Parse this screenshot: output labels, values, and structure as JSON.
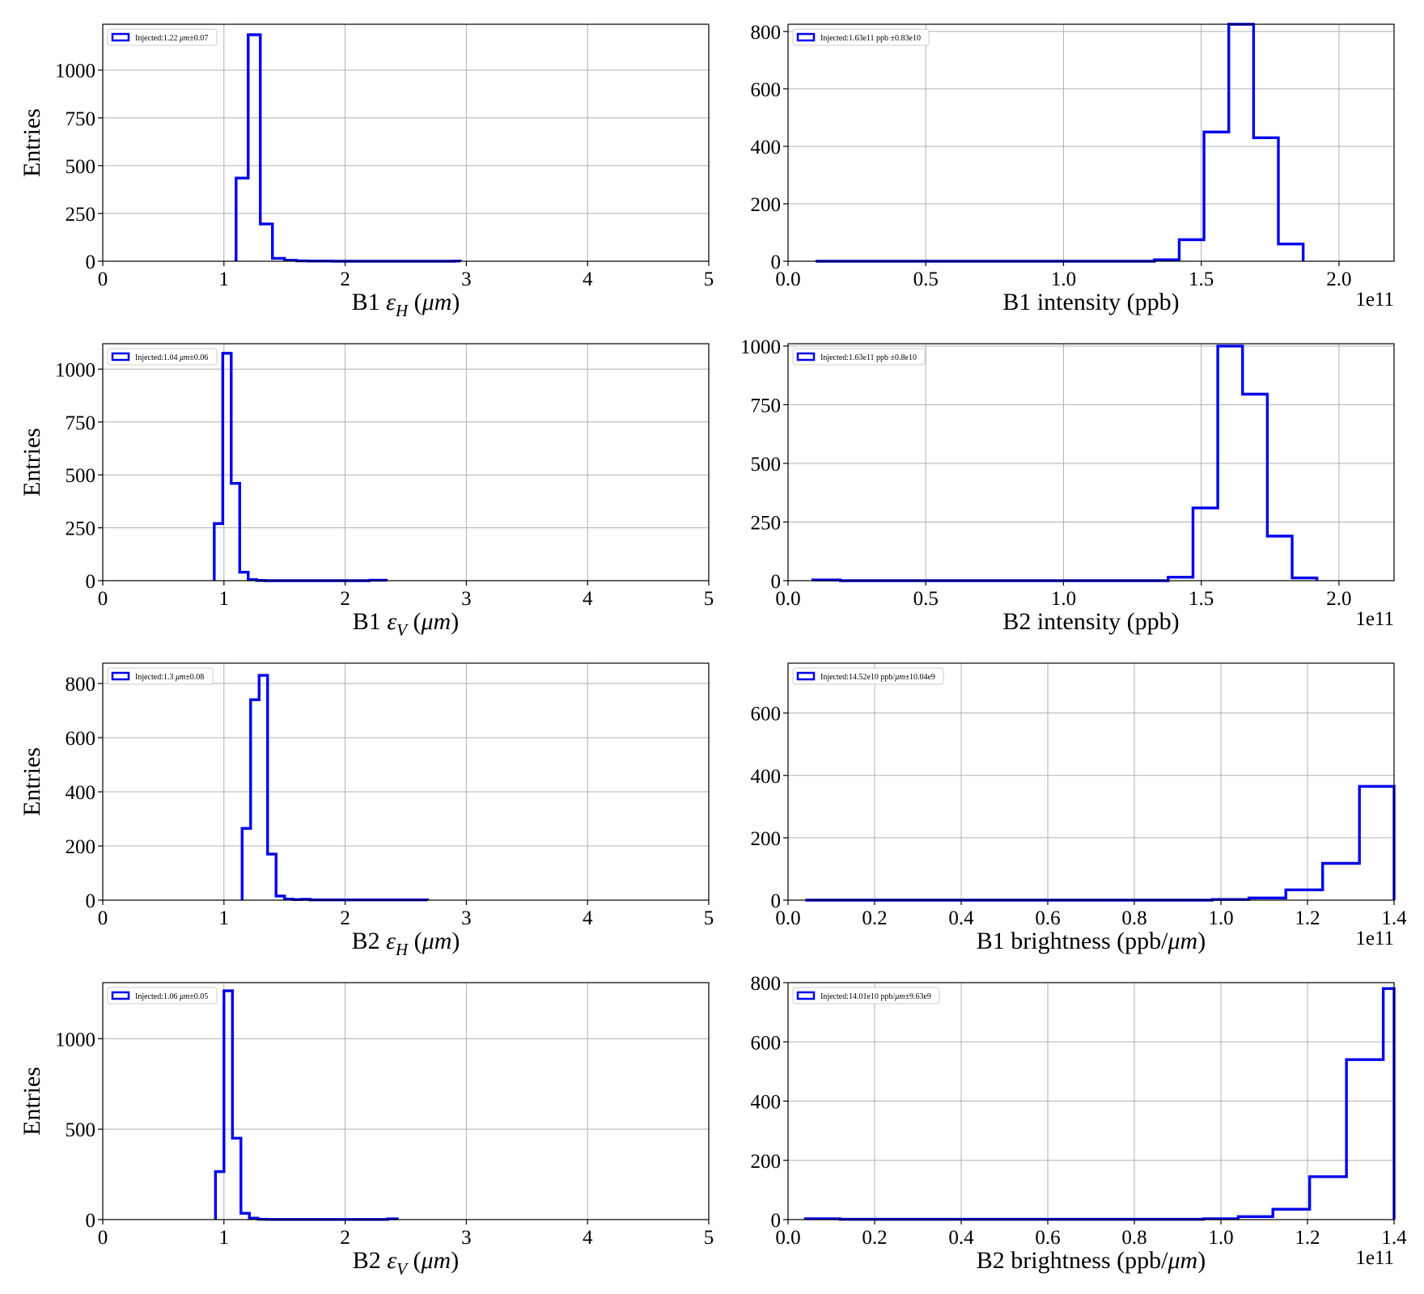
{
  "style": {
    "series_color": "#0000ee"
  },
  "charts": [
    {
      "id": "b1-eh",
      "chart_data": {
        "type": "histogram",
        "xlabel": "B1 εH (μm)",
        "xlabel_parts": [
          {
            "t": "B1 "
          },
          {
            "t": "ε",
            "italic": true
          },
          {
            "t": "H",
            "italic": true,
            "sub": true
          },
          {
            "t": " ("
          },
          {
            "t": "μm",
            "italic": true
          },
          {
            "t": ")"
          }
        ],
        "ylabel": "Entries",
        "xlim": [
          0,
          5
        ],
        "ylim": [
          0,
          1240
        ],
        "xticks": [
          0,
          1,
          2,
          3,
          4,
          5
        ],
        "xtick_labels": [
          "0",
          "1",
          "2",
          "3",
          "4",
          "5"
        ],
        "yticks": [
          0,
          250,
          500,
          750,
          1000
        ],
        "ytick_labels": [
          "0",
          "250",
          "500",
          "750",
          "1000"
        ],
        "offset_label": "",
        "grid": true,
        "legend_position": "top-left",
        "legend": "Injected:1.22 μm±0.07",
        "legend_parts": [
          {
            "t": "Injected:1.22 "
          },
          {
            "t": "μm",
            "italic": true
          },
          {
            "t": "±0.07"
          }
        ],
        "bin_edges": [
          1.1,
          1.2,
          1.3,
          1.4,
          1.5,
          1.6,
          1.7,
          1.8,
          1.9,
          2.0,
          2.1,
          2.2,
          2.3,
          2.4,
          2.5,
          2.6,
          2.7,
          2.8,
          2.9,
          2.95
        ],
        "counts": [
          435,
          1185,
          195,
          15,
          5,
          2,
          1,
          1,
          0,
          0,
          0,
          0,
          0,
          0,
          0,
          0,
          0,
          0,
          1
        ]
      }
    },
    {
      "id": "b1-intensity",
      "chart_data": {
        "type": "histogram",
        "xlabel": "B1 intensity (ppb)",
        "xlabel_parts": [
          {
            "t": "B1 intensity (ppb)"
          }
        ],
        "ylabel": "",
        "xlim": [
          0,
          2.2
        ],
        "ylim": [
          0,
          825
        ],
        "xticks": [
          0,
          0.5,
          1.0,
          1.5,
          2.0
        ],
        "xtick_labels": [
          "0.0",
          "0.5",
          "1.0",
          "1.5",
          "2.0"
        ],
        "yticks": [
          0,
          200,
          400,
          600,
          800
        ],
        "ytick_labels": [
          "0",
          "200",
          "400",
          "600",
          "800"
        ],
        "offset_label": "1e11",
        "grid": true,
        "legend_position": "top-left",
        "legend": "Injected:1.63e11 ppb ±0.83e10",
        "legend_parts": [
          {
            "t": "Injected:1.63e11 ppb ±0.83e10"
          }
        ],
        "bin_edges": [
          0.1,
          1.33,
          1.42,
          1.51,
          1.6,
          1.69,
          1.78,
          1.87
        ],
        "counts": [
          0,
          5,
          75,
          450,
          825,
          430,
          60
        ]
      }
    },
    {
      "id": "b1-ev",
      "chart_data": {
        "type": "histogram",
        "xlabel": "B1 εV (μm)",
        "xlabel_parts": [
          {
            "t": "B1 "
          },
          {
            "t": "ε",
            "italic": true
          },
          {
            "t": "V",
            "italic": true,
            "sub": true
          },
          {
            "t": " ("
          },
          {
            "t": "μm",
            "italic": true
          },
          {
            "t": ")"
          }
        ],
        "ylabel": "Entries",
        "xlim": [
          0,
          5
        ],
        "ylim": [
          0,
          1120
        ],
        "xticks": [
          0,
          1,
          2,
          3,
          4,
          5
        ],
        "xtick_labels": [
          "0",
          "1",
          "2",
          "3",
          "4",
          "5"
        ],
        "yticks": [
          0,
          250,
          500,
          750,
          1000
        ],
        "ytick_labels": [
          "0",
          "250",
          "500",
          "750",
          "1000"
        ],
        "offset_label": "",
        "grid": true,
        "legend_position": "top-left",
        "legend": "Injected:1.04 μm±0.06",
        "legend_parts": [
          {
            "t": "Injected:1.04 "
          },
          {
            "t": "μm",
            "italic": true
          },
          {
            "t": "±0.06"
          }
        ],
        "bin_edges": [
          0.92,
          0.99,
          1.06,
          1.13,
          1.2,
          1.27,
          1.34,
          1.41,
          2.2,
          2.27,
          2.34
        ],
        "counts": [
          270,
          1075,
          460,
          40,
          5,
          1,
          0,
          0,
          2,
          2
        ]
      }
    },
    {
      "id": "b2-intensity",
      "chart_data": {
        "type": "histogram",
        "xlabel": "B2 intensity (ppb)",
        "xlabel_parts": [
          {
            "t": "B2 intensity (ppb)"
          }
        ],
        "ylabel": "",
        "xlim": [
          0,
          2.2
        ],
        "ylim": [
          0,
          1010
        ],
        "xticks": [
          0,
          0.5,
          1.0,
          1.5,
          2.0
        ],
        "xtick_labels": [
          "0.0",
          "0.5",
          "1.0",
          "1.5",
          "2.0"
        ],
        "yticks": [
          0,
          250,
          500,
          750,
          1000
        ],
        "ytick_labels": [
          "0",
          "250",
          "500",
          "750",
          "1000"
        ],
        "offset_label": "1e11",
        "grid": true,
        "legend_position": "top-left",
        "legend": "Injected:1.63e11 ppb ±0.8e10",
        "legend_parts": [
          {
            "t": "Injected:1.63e11 ppb ±0.8e10"
          }
        ],
        "bin_edges": [
          0.09,
          0.19,
          1.38,
          1.47,
          1.56,
          1.65,
          1.74,
          1.83,
          1.92
        ],
        "counts": [
          3,
          0,
          15,
          310,
          1000,
          795,
          190,
          12
        ]
      }
    },
    {
      "id": "b2-eh",
      "chart_data": {
        "type": "histogram",
        "xlabel": "B2 εH (μm)",
        "xlabel_parts": [
          {
            "t": "B2 "
          },
          {
            "t": "ε",
            "italic": true
          },
          {
            "t": "H",
            "italic": true,
            "sub": true
          },
          {
            "t": " ("
          },
          {
            "t": "μm",
            "italic": true
          },
          {
            "t": ")"
          }
        ],
        "ylabel": "Entries",
        "xlim": [
          0,
          5
        ],
        "ylim": [
          0,
          875
        ],
        "xticks": [
          0,
          1,
          2,
          3,
          4,
          5
        ],
        "xtick_labels": [
          "0",
          "1",
          "2",
          "3",
          "4",
          "5"
        ],
        "yticks": [
          0,
          200,
          400,
          600,
          800
        ],
        "ytick_labels": [
          "0",
          "200",
          "400",
          "600",
          "800"
        ],
        "offset_label": "",
        "grid": true,
        "legend_position": "top-left",
        "legend": "Injected:1.3 μm±0.08",
        "legend_parts": [
          {
            "t": "Injected:1.3 "
          },
          {
            "t": "μm",
            "italic": true
          },
          {
            "t": "±0.08"
          }
        ],
        "bin_edges": [
          1.15,
          1.22,
          1.29,
          1.36,
          1.43,
          1.5,
          1.57,
          1.64,
          1.71,
          2.0,
          2.68
        ],
        "counts": [
          265,
          740,
          830,
          170,
          15,
          4,
          2,
          3,
          1,
          1
        ]
      }
    },
    {
      "id": "b1-brightness",
      "chart_data": {
        "type": "histogram",
        "xlabel": "B1 brightness (ppb/μm)",
        "xlabel_parts": [
          {
            "t": "B1 brightness (ppb/"
          },
          {
            "t": "μm",
            "italic": true
          },
          {
            "t": ")"
          }
        ],
        "ylabel": "",
        "xlim": [
          0,
          1.4
        ],
        "ylim": [
          0,
          760
        ],
        "xticks": [
          0,
          0.2,
          0.4,
          0.6,
          0.8,
          1.0,
          1.2,
          1.4
        ],
        "xtick_labels": [
          "0.0",
          "0.2",
          "0.4",
          "0.6",
          "0.8",
          "1.0",
          "1.2",
          "1.4"
        ],
        "yticks": [
          0,
          200,
          400,
          600
        ],
        "ytick_labels": [
          "0",
          "200",
          "400",
          "600"
        ],
        "offset_label": "1e11",
        "grid": true,
        "legend_position": "top-left",
        "legend": "Injected:14.52e10 ppb/μm±10.04e9",
        "legend_parts": [
          {
            "t": "Injected:14.52e10 ppb/"
          },
          {
            "t": "μm",
            "italic": true
          },
          {
            "t": "±10.04e9"
          }
        ],
        "bin_edges": [
          0.04,
          0.98,
          1.065,
          1.15,
          1.235,
          1.32,
          1.4
        ],
        "counts": [
          0,
          2,
          7,
          33,
          118,
          365
        ]
      }
    },
    {
      "id": "b2-ev",
      "chart_data": {
        "type": "histogram",
        "xlabel": "B2 εV (μm)",
        "xlabel_parts": [
          {
            "t": "B2 "
          },
          {
            "t": "ε",
            "italic": true
          },
          {
            "t": "V",
            "italic": true,
            "sub": true
          },
          {
            "t": " ("
          },
          {
            "t": "μm",
            "italic": true
          },
          {
            "t": ")"
          }
        ],
        "ylabel": "Entries",
        "xlim": [
          0,
          5
        ],
        "ylim": [
          0,
          1310
        ],
        "xticks": [
          0,
          1,
          2,
          3,
          4,
          5
        ],
        "xtick_labels": [
          "0",
          "1",
          "2",
          "3",
          "4",
          "5"
        ],
        "yticks": [
          0,
          500,
          1000
        ],
        "ytick_labels": [
          "0",
          "500",
          "1000"
        ],
        "offset_label": "",
        "grid": true,
        "legend_position": "top-left",
        "legend": "Injected:1.06 μm±0.05",
        "legend_parts": [
          {
            "t": "Injected:1.06 "
          },
          {
            "t": "μm",
            "italic": true
          },
          {
            "t": "±0.05"
          }
        ],
        "bin_edges": [
          0.93,
          1.0,
          1.07,
          1.14,
          1.21,
          1.28,
          1.35,
          2.35,
          2.43
        ],
        "counts": [
          265,
          1265,
          450,
          35,
          8,
          2,
          1,
          4
        ]
      }
    },
    {
      "id": "b2-brightness",
      "chart_data": {
        "type": "histogram",
        "xlabel": "B2 brightness (ppb/μm)",
        "xlabel_parts": [
          {
            "t": "B2 brightness (ppb/"
          },
          {
            "t": "μm",
            "italic": true
          },
          {
            "t": ")"
          }
        ],
        "ylabel": "",
        "xlim": [
          0,
          1.4
        ],
        "ylim": [
          0,
          800
        ],
        "xticks": [
          0,
          0.2,
          0.4,
          0.6,
          0.8,
          1.0,
          1.2,
          1.4
        ],
        "xtick_labels": [
          "0.0",
          "0.2",
          "0.4",
          "0.6",
          "0.8",
          "1.0",
          "1.2",
          "1.4"
        ],
        "yticks": [
          0,
          200,
          400,
          600,
          800
        ],
        "ytick_labels": [
          "0",
          "200",
          "400",
          "600",
          "800"
        ],
        "offset_label": "1e11",
        "grid": true,
        "legend_position": "top-left",
        "legend": "Injected:14.01e10 ppb/μm±9.63e9",
        "legend_parts": [
          {
            "t": "Injected:14.01e10 ppb/"
          },
          {
            "t": "μm",
            "italic": true
          },
          {
            "t": "±9.63e9"
          }
        ],
        "bin_edges": [
          0.04,
          0.12,
          0.96,
          1.04,
          1.12,
          1.205,
          1.29,
          1.375,
          1.4
        ],
        "counts": [
          3,
          1,
          3,
          10,
          35,
          145,
          540,
          780
        ]
      }
    }
  ]
}
